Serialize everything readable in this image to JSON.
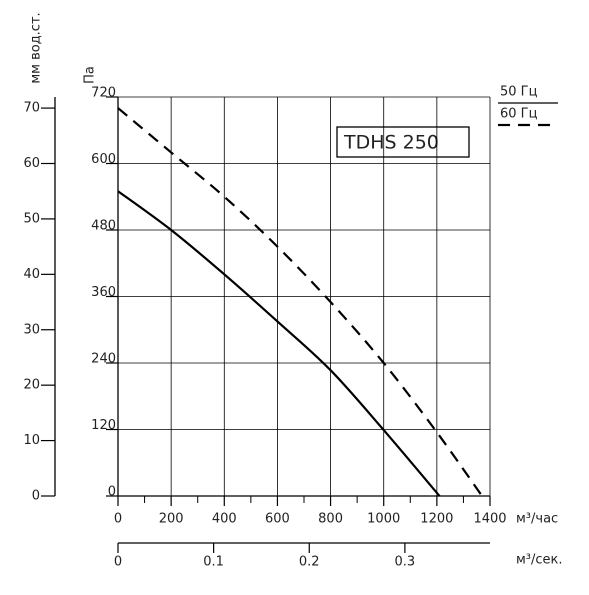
{
  "chart_data": {
    "type": "line",
    "title": "TDHS 250",
    "x_label": "м³/час",
    "y_label": "Па",
    "y2_label": "мм вод.ст.",
    "x2_label": "м³/сек.",
    "xlim": [
      0,
      1400
    ],
    "xticks": [
      0,
      200,
      400,
      600,
      800,
      1000,
      1200,
      1400
    ],
    "xminorticks": [
      100,
      300,
      500,
      700,
      900,
      1100,
      1300
    ],
    "ylim": [
      0,
      720
    ],
    "yticks": [
      0,
      120,
      240,
      360,
      480,
      600,
      720
    ],
    "y2lim": [
      0,
      72
    ],
    "y2ticks": [
      0,
      10,
      20,
      30,
      40,
      50,
      60,
      70
    ],
    "x2lim": [
      0,
      0.389
    ],
    "x2ticks": [
      0,
      0.1,
      0.2,
      0.3
    ],
    "grid": true,
    "series": [
      {
        "name": "50 Гц",
        "color": "#000000",
        "dashed": false,
        "x": [
          0,
          200,
          400,
          600,
          800,
          1000,
          1210
        ],
        "values": [
          550,
          480,
          400,
          315,
          227,
          119,
          0
        ]
      },
      {
        "name": "60 Гц",
        "color": "#000000",
        "dashed": true,
        "x": [
          0,
          200,
          400,
          600,
          800,
          1000,
          1200,
          1370
        ],
        "values": [
          700,
          620,
          540,
          450,
          350,
          240,
          115,
          0
        ]
      }
    ]
  }
}
